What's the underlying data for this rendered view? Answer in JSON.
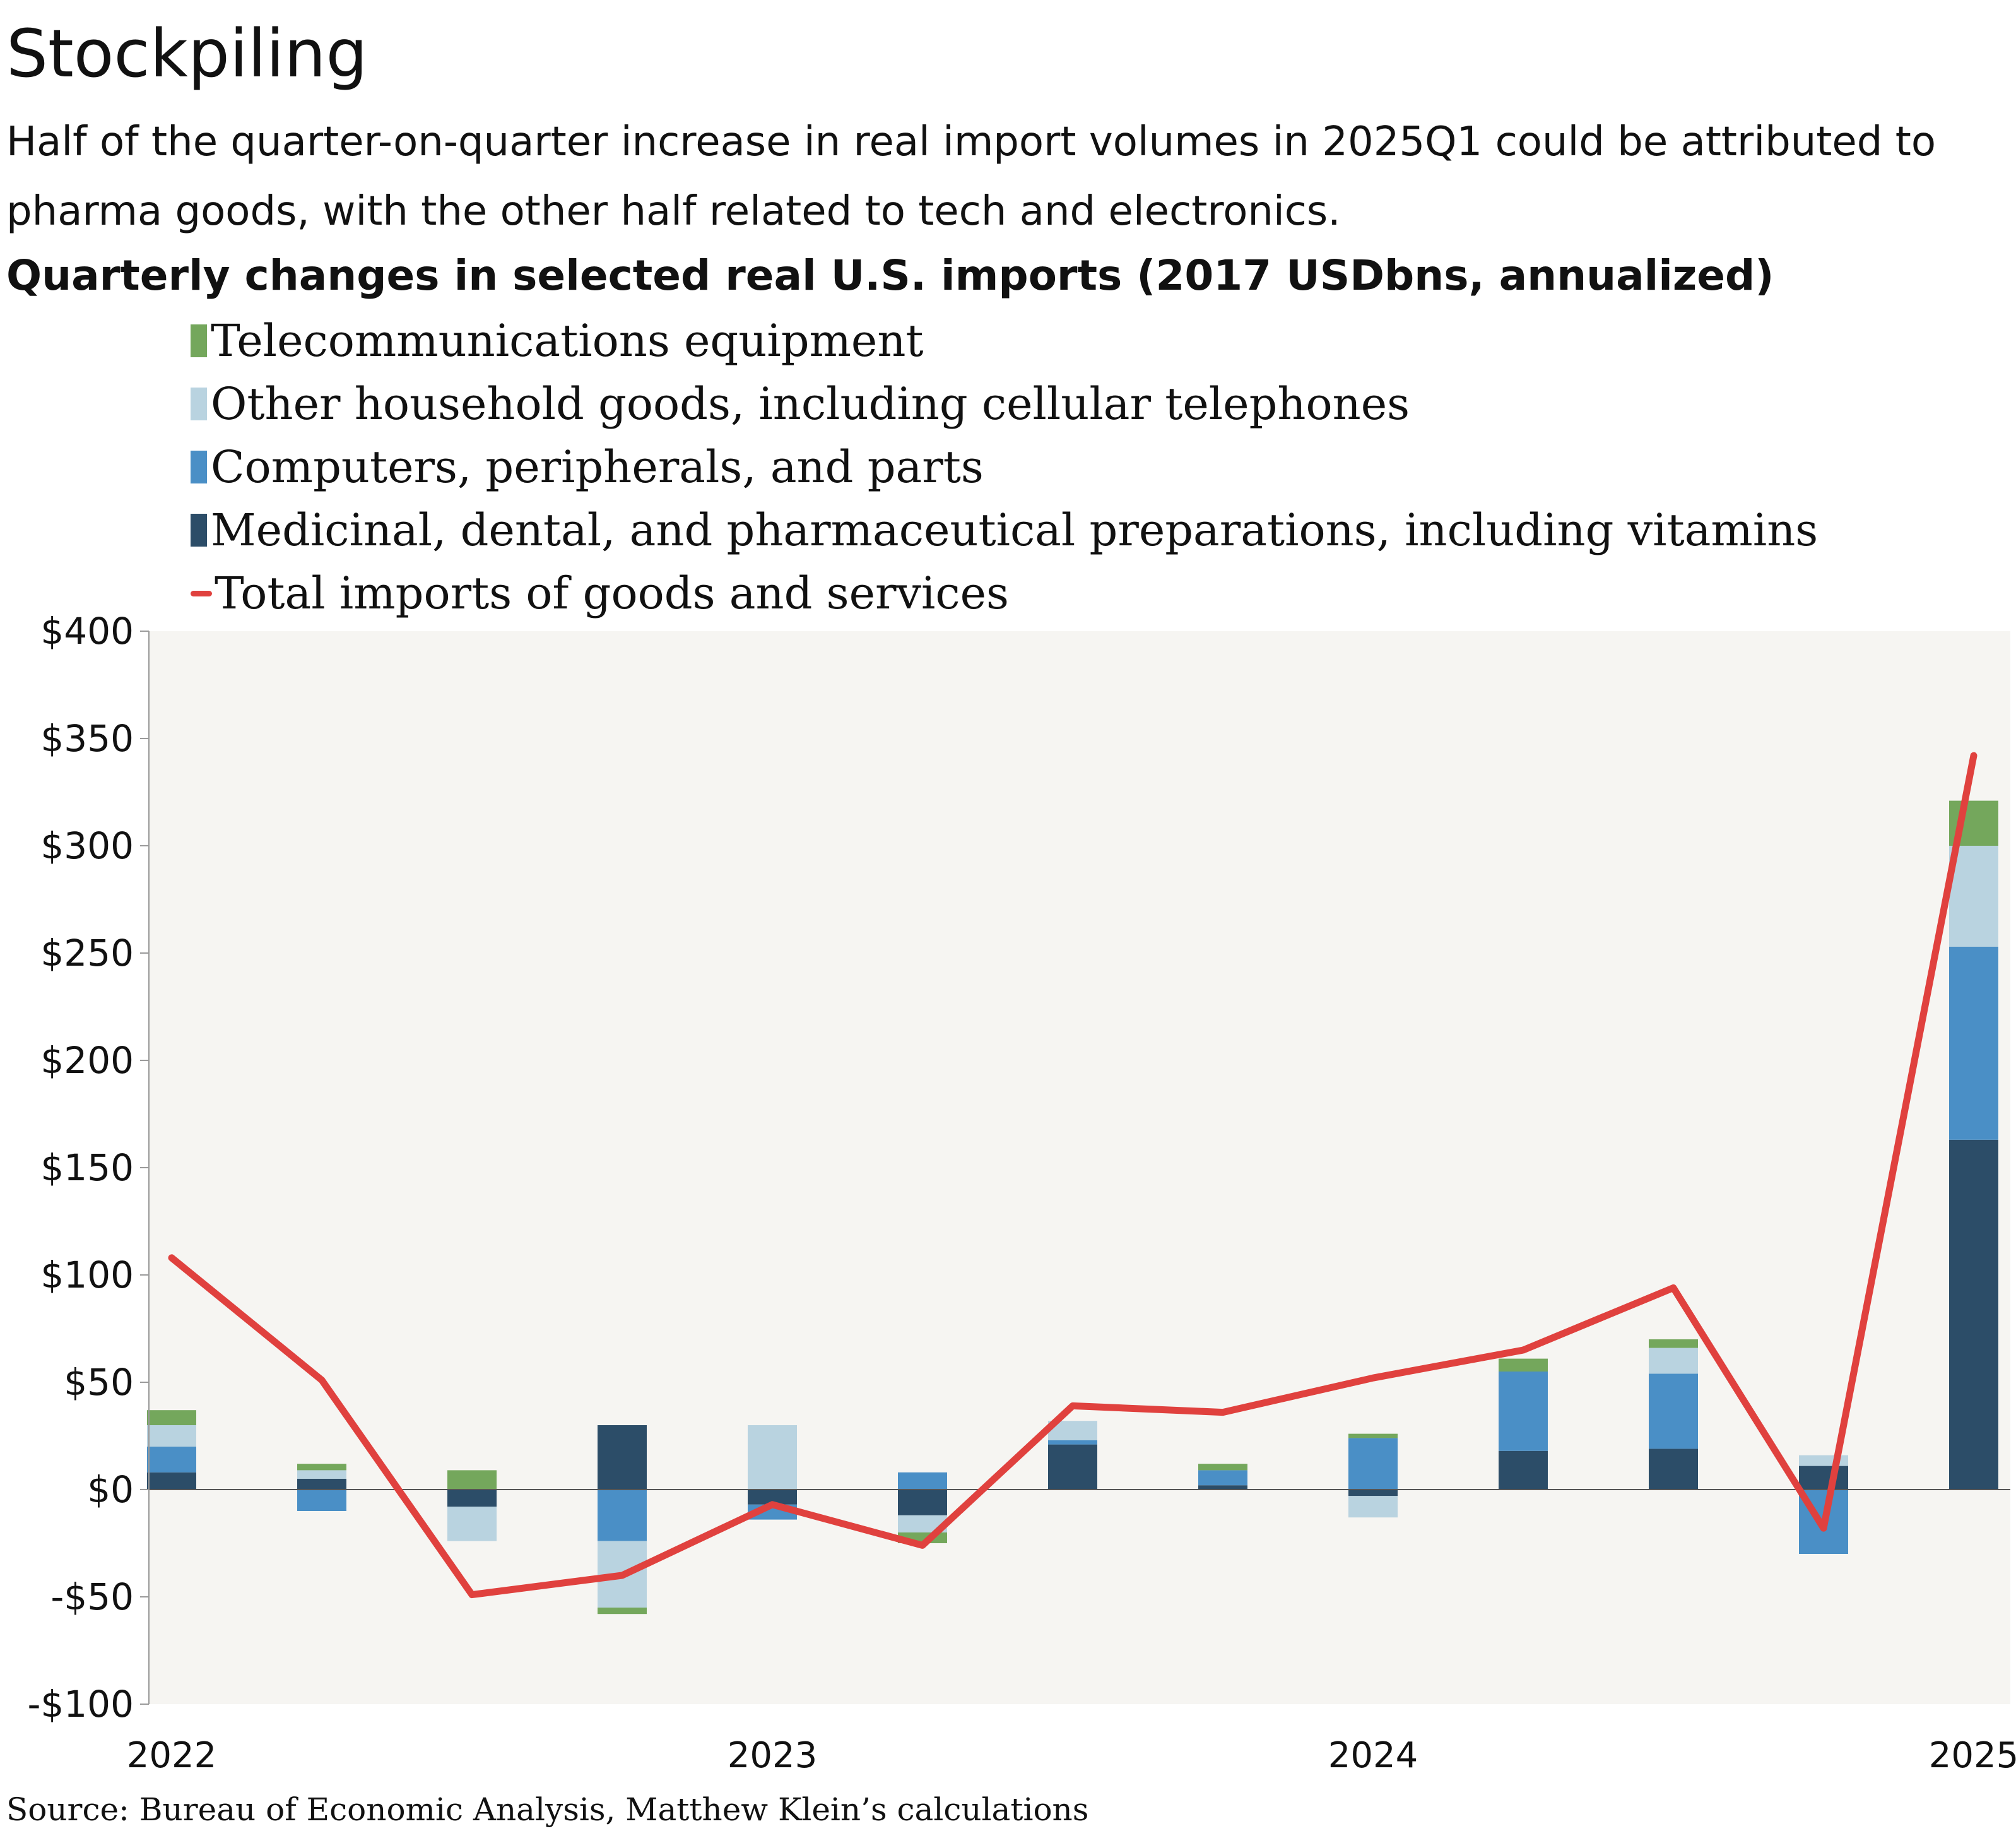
{
  "header": {
    "title": "Stockpiling",
    "subtitle": "Half of the quarter-on-quarter increase in real import volumes in 2025Q1 could be attributed to pharma goods, with the other half related to tech and electronics.",
    "chart_heading": "Quarterly changes in selected real U.S. imports (2017 USDbns, annualized)"
  },
  "legend": [
    {
      "label": "Telecommunications equipment",
      "color": "#74a75c",
      "kind": "bar"
    },
    {
      "label": "Other household goods, including cellular telephones",
      "color": "#b9d3e0",
      "kind": "bar"
    },
    {
      "label": "Computers, peripherals, and parts",
      "color": "#4a8fc6",
      "kind": "bar"
    },
    {
      "label": "Medicinal, dental, and pharmaceutical preparations, including vitamins",
      "color": "#2c4d68",
      "kind": "bar"
    },
    {
      "label": "Total imports of goods and services",
      "color": "#e0413e",
      "kind": "line"
    }
  ],
  "source": "Source: Bureau of Economic Analysis, Matthew Klein’s calculations",
  "chart_data": {
    "type": "bar",
    "title": "Quarterly changes in selected real U.S. imports (2017 USDbns, annualized)",
    "stacked": true,
    "categories": [
      "2022Q1",
      "2022Q2",
      "2022Q3",
      "2022Q4",
      "2023Q1",
      "2023Q2",
      "2023Q3",
      "2023Q4",
      "2024Q1",
      "2024Q2",
      "2024Q3",
      "2024Q4",
      "2025Q1"
    ],
    "x_tick_labels": [
      "2022",
      "2023",
      "2024",
      "2025"
    ],
    "y_ticks": [
      400,
      350,
      300,
      250,
      200,
      150,
      100,
      50,
      0,
      -50,
      -100
    ],
    "y_tick_labels": [
      "$400",
      "$350",
      "$300",
      "$250",
      "$200",
      "$150",
      "$100",
      "$50",
      "$0",
      "-$50",
      "-$100"
    ],
    "ylim": [
      -100,
      400
    ],
    "grid": false,
    "background": "#f6f5f2",
    "legend_position": "top",
    "series": [
      {
        "name": "Medicinal, dental, and pharmaceutical preparations, including vitamins",
        "color": "#2c4d68",
        "values": [
          8,
          5,
          -8,
          30,
          -7,
          -12,
          21,
          2,
          -3,
          18,
          19,
          11,
          163
        ]
      },
      {
        "name": "Computers, peripherals, and parts",
        "color": "#4a8fc6",
        "values": [
          12,
          -10,
          0,
          -24,
          -7,
          8,
          2,
          7,
          24,
          37,
          35,
          -30,
          90
        ]
      },
      {
        "name": "Other household goods, including cellular telephones",
        "color": "#b9d3e0",
        "values": [
          10,
          4,
          -16,
          -31,
          30,
          -8,
          9,
          0,
          -10,
          0,
          12,
          5,
          47
        ]
      },
      {
        "name": "Telecommunications equipment",
        "color": "#74a75c",
        "values": [
          7,
          3,
          9,
          -3,
          0,
          -5,
          0,
          3,
          2,
          6,
          4,
          0,
          21
        ]
      }
    ],
    "line": {
      "name": "Total imports of goods and services",
      "color": "#e0413e",
      "values": [
        108,
        51,
        -49,
        -40,
        -7,
        -26,
        39,
        36,
        52,
        65,
        94,
        -18,
        342
      ]
    }
  }
}
